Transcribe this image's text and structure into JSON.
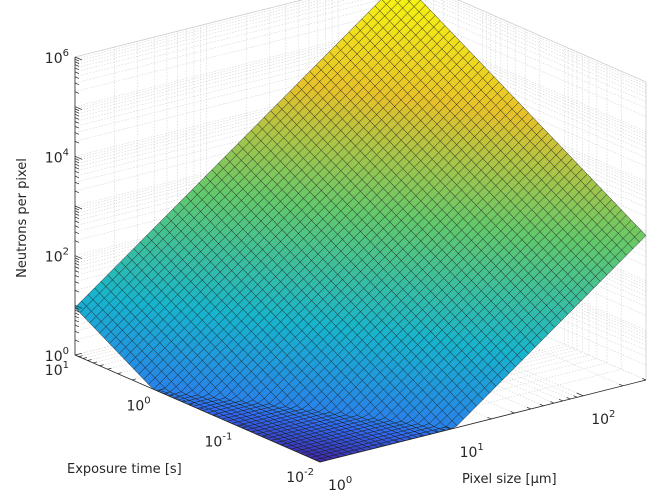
{
  "chart_data": {
    "type": "surface",
    "title": "",
    "xlabel": "Pixel size [μm]",
    "ylabel": "Exposure time [s]",
    "zlabel": "Neutrons per pixel",
    "x_scale": "log",
    "y_scale": "log",
    "z_scale": "log",
    "xlim": [
      1,
      300
    ],
    "ylim": [
      0.01,
      10
    ],
    "zlim": [
      1,
      1000000
    ],
    "grid": true,
    "grid_points": 50,
    "surface_model": "z = 0.9 * x^2 * y",
    "corner_values": [
      {
        "x": 1,
        "y": 0.01,
        "z": 0.009
      },
      {
        "x": 1,
        "y": 10,
        "z": 9
      },
      {
        "x": 300,
        "y": 0.01,
        "z": 810
      },
      {
        "x": 300,
        "y": 10,
        "z": 810000
      }
    ],
    "colormap": [
      "#3e26a8",
      "#2f6ef5",
      "#17b4cd",
      "#62c96b",
      "#e6c12a",
      "#f9fb0e"
    ],
    "x_ticks": [
      {
        "value": 1,
        "base": "10",
        "exp": "0"
      },
      {
        "value": 10,
        "base": "10",
        "exp": "1"
      },
      {
        "value": 100,
        "base": "10",
        "exp": "2"
      }
    ],
    "y_ticks": [
      {
        "value": 0.01,
        "base": "10",
        "exp": "-2"
      },
      {
        "value": 0.1,
        "base": "10",
        "exp": "-1"
      },
      {
        "value": 1,
        "base": "10",
        "exp": "0"
      },
      {
        "value": 10,
        "base": "10",
        "exp": "1"
      }
    ],
    "z_ticks": [
      {
        "value": 1,
        "base": "10",
        "exp": "0"
      },
      {
        "value": 100,
        "base": "10",
        "exp": "2"
      },
      {
        "value": 10000,
        "base": "10",
        "exp": "4"
      },
      {
        "value": 1000000,
        "base": "10",
        "exp": "6"
      }
    ]
  }
}
